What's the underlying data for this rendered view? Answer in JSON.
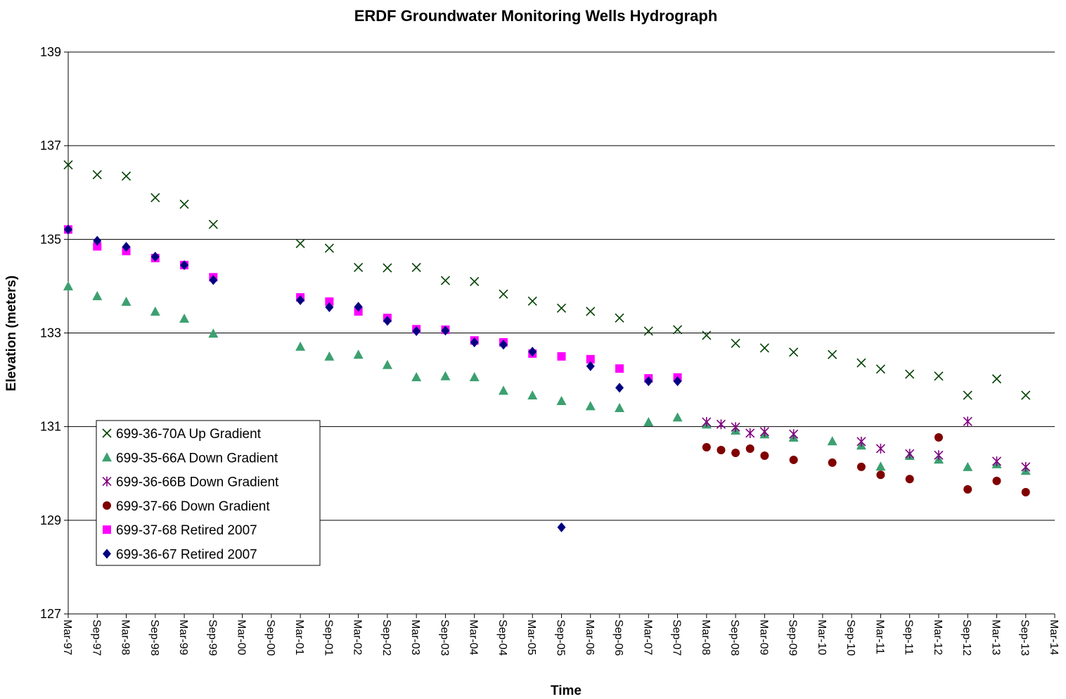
{
  "chart_data": {
    "type": "scatter",
    "title": "ERDF Groundwater Monitoring Wells Hydrograph",
    "x_label": "Time",
    "y_label": "Elevation (meters)",
    "xlim": [
      "1997-03",
      "2014-03"
    ],
    "xticks": [
      {
        "value": "1997-03",
        "label": "Mar-97"
      },
      {
        "value": "1997-09",
        "label": "Sep-97"
      },
      {
        "value": "1998-03",
        "label": "Mar-98"
      },
      {
        "value": "1998-09",
        "label": "Sep-98"
      },
      {
        "value": "1999-03",
        "label": "Mar-99"
      },
      {
        "value": "1999-09",
        "label": "Sep-99"
      },
      {
        "value": "2000-03",
        "label": "Mar-00"
      },
      {
        "value": "2000-09",
        "label": "Sep-00"
      },
      {
        "value": "2001-03",
        "label": "Mar-01"
      },
      {
        "value": "2001-09",
        "label": "Sep-01"
      },
      {
        "value": "2002-03",
        "label": "Mar-02"
      },
      {
        "value": "2002-09",
        "label": "Sep-02"
      },
      {
        "value": "2003-03",
        "label": "Mar-03"
      },
      {
        "value": "2003-09",
        "label": "Sep-03"
      },
      {
        "value": "2004-03",
        "label": "Mar-04"
      },
      {
        "value": "2004-09",
        "label": "Sep-04"
      },
      {
        "value": "2005-03",
        "label": "Mar-05"
      },
      {
        "value": "2005-09",
        "label": "Sep-05"
      },
      {
        "value": "2006-03",
        "label": "Mar-06"
      },
      {
        "value": "2006-09",
        "label": "Sep-06"
      },
      {
        "value": "2007-03",
        "label": "Mar-07"
      },
      {
        "value": "2007-09",
        "label": "Sep-07"
      },
      {
        "value": "2008-03",
        "label": "Mar-08"
      },
      {
        "value": "2008-09",
        "label": "Sep-08"
      },
      {
        "value": "2009-03",
        "label": "Mar-09"
      },
      {
        "value": "2009-09",
        "label": "Sep-09"
      },
      {
        "value": "2010-03",
        "label": "Mar-10"
      },
      {
        "value": "2010-09",
        "label": "Sep-10"
      },
      {
        "value": "2011-03",
        "label": "Mar-11"
      },
      {
        "value": "2011-09",
        "label": "Sep-11"
      },
      {
        "value": "2012-03",
        "label": "Mar-12"
      },
      {
        "value": "2012-09",
        "label": "Sep-12"
      },
      {
        "value": "2013-03",
        "label": "Mar-13"
      },
      {
        "value": "2013-09",
        "label": "Sep-13"
      },
      {
        "value": "2014-03",
        "label": "Mar-14"
      }
    ],
    "ylim": [
      127,
      139
    ],
    "yticks": [
      127,
      129,
      131,
      133,
      135,
      137,
      139
    ],
    "grid": true,
    "legend": "lower left",
    "series": [
      {
        "name": "699-36-70A Up Gradient",
        "color": "#004000",
        "marker": "x",
        "x": [
          "1997-03",
          "1997-09",
          "1998-03",
          "1998-09",
          "1999-03",
          "1999-09",
          "2001-03",
          "2001-09",
          "2002-03",
          "2002-09",
          "2003-03",
          "2003-09",
          "2004-03",
          "2004-09",
          "2005-03",
          "2005-09",
          "2006-03",
          "2006-09",
          "2007-03",
          "2007-09",
          "2008-03",
          "2008-09",
          "2009-03",
          "2009-09",
          "2010-05",
          "2010-11",
          "2011-03",
          "2011-09",
          "2012-03",
          "2012-09",
          "2013-03",
          "2013-09"
        ],
        "values": [
          136.59,
          136.38,
          136.35,
          135.89,
          135.75,
          135.32,
          134.91,
          134.81,
          134.4,
          134.39,
          134.4,
          134.12,
          134.1,
          133.83,
          133.68,
          133.53,
          133.46,
          133.32,
          133.04,
          133.07,
          132.95,
          132.78,
          132.68,
          132.59,
          132.54,
          132.36,
          132.23,
          132.12,
          132.08,
          131.67,
          132.02,
          131.67
        ]
      },
      {
        "name": "699-35-66A Down Gradient",
        "color": "#3CA070",
        "marker": "triangle",
        "x": [
          "1997-03",
          "1997-09",
          "1998-03",
          "1998-09",
          "1999-03",
          "1999-09",
          "2001-03",
          "2001-09",
          "2002-03",
          "2002-09",
          "2003-03",
          "2003-09",
          "2004-03",
          "2004-09",
          "2005-03",
          "2005-09",
          "2006-03",
          "2006-09",
          "2007-03",
          "2007-09",
          "2008-03",
          "2008-09",
          "2009-03",
          "2009-09",
          "2010-05",
          "2010-11",
          "2011-03",
          "2011-09",
          "2012-03",
          "2012-09",
          "2013-03",
          "2013-09"
        ],
        "values": [
          134.0,
          133.79,
          133.67,
          133.46,
          133.31,
          132.99,
          132.71,
          132.5,
          132.54,
          132.32,
          132.06,
          132.08,
          132.06,
          131.77,
          131.67,
          131.55,
          131.44,
          131.4,
          131.1,
          131.2,
          131.05,
          130.92,
          130.84,
          130.77,
          130.69,
          130.6,
          130.15,
          130.38,
          130.3,
          130.14,
          130.2,
          130.06
        ]
      },
      {
        "name": "699-36-66B Down Gradient",
        "color": "#800080",
        "marker": "asterisk",
        "x": [
          "2008-03",
          "2008-06",
          "2008-09",
          "2008-12",
          "2009-03",
          "2009-09",
          "2010-11",
          "2011-03",
          "2011-09",
          "2012-03",
          "2012-09",
          "2013-03",
          "2013-09"
        ],
        "values": [
          131.1,
          131.05,
          130.99,
          130.86,
          130.89,
          130.84,
          130.68,
          130.53,
          130.42,
          130.39,
          131.11,
          130.26,
          130.14
        ]
      },
      {
        "name": "699-37-66 Down Gradient",
        "color": "#800000",
        "marker": "circle",
        "x": [
          "2008-03",
          "2008-06",
          "2008-09",
          "2008-12",
          "2009-03",
          "2009-09",
          "2010-05",
          "2010-11",
          "2011-03",
          "2011-09",
          "2012-03",
          "2012-09",
          "2013-03",
          "2013-09"
        ],
        "values": [
          130.56,
          130.5,
          130.44,
          130.53,
          130.38,
          130.29,
          130.23,
          130.14,
          129.97,
          129.88,
          130.77,
          129.66,
          129.84,
          129.6
        ]
      },
      {
        "name": "699-37-68 Retired 2007",
        "color": "#FF00FF",
        "marker": "square",
        "x": [
          "1997-03",
          "1997-09",
          "1998-03",
          "1998-09",
          "1999-03",
          "1999-09",
          "2001-03",
          "2001-09",
          "2002-03",
          "2002-09",
          "2003-03",
          "2003-09",
          "2004-03",
          "2004-09",
          "2005-03",
          "2005-09",
          "2006-03",
          "2006-09",
          "2007-03",
          "2007-09"
        ],
        "values": [
          135.21,
          134.85,
          134.75,
          134.6,
          134.45,
          134.19,
          133.76,
          133.67,
          133.46,
          133.32,
          133.08,
          133.07,
          132.84,
          132.8,
          132.56,
          132.5,
          132.44,
          132.24,
          132.03,
          132.05
        ]
      },
      {
        "name": "699-36-67 Retired 2007",
        "color": "#000080",
        "marker": "diamond",
        "x": [
          "1997-03",
          "1997-09",
          "1998-03",
          "1998-09",
          "1999-03",
          "1999-09",
          "2001-03",
          "2001-09",
          "2002-03",
          "2002-09",
          "2003-03",
          "2003-09",
          "2004-03",
          "2004-09",
          "2005-03",
          "2005-09",
          "2006-03",
          "2006-09",
          "2007-03",
          "2007-09"
        ],
        "values": [
          135.21,
          134.97,
          134.84,
          134.63,
          134.45,
          134.13,
          133.7,
          133.55,
          133.56,
          133.26,
          133.04,
          133.05,
          132.8,
          132.75,
          132.6,
          128.85,
          132.29,
          131.83,
          131.97,
          131.97
        ]
      }
    ]
  }
}
